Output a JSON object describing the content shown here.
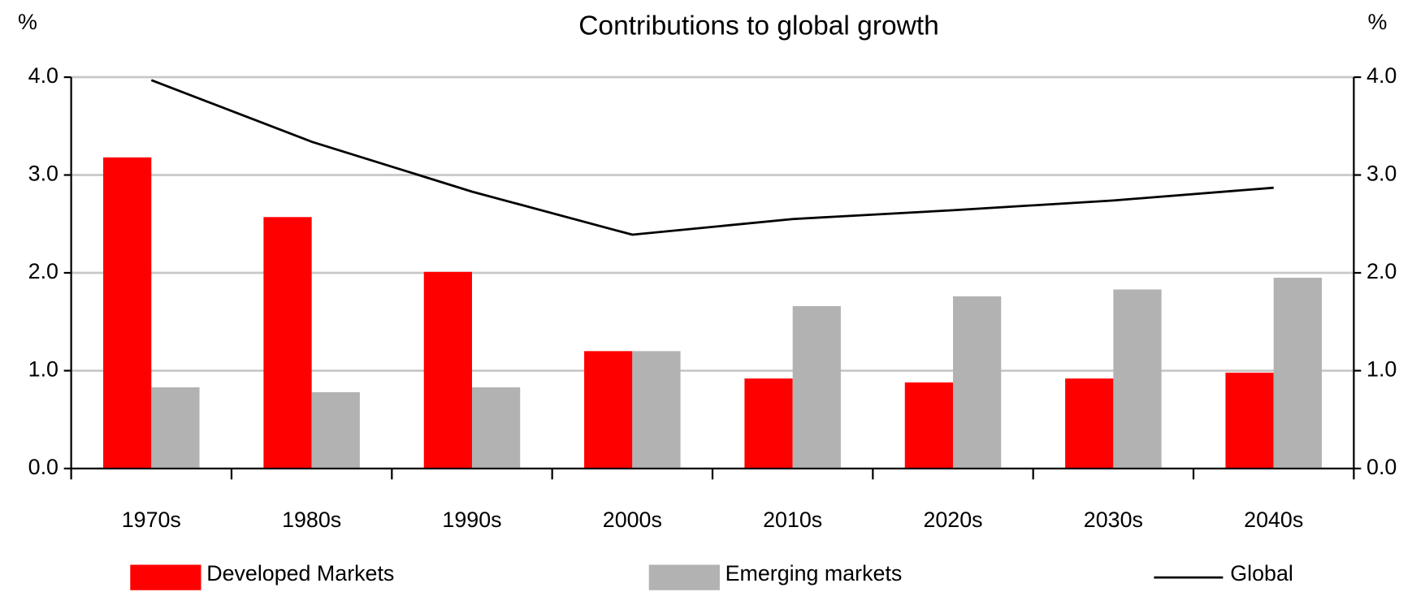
{
  "chart_data": {
    "type": "bar",
    "title": "Contributions to global growth",
    "y_label": "%",
    "y2_label": "%",
    "categories": [
      "1970s",
      "1980s",
      "1990s",
      "2000s",
      "2010s",
      "2020s",
      "2030s",
      "2040s"
    ],
    "series": [
      {
        "name": "Developed Markets",
        "color": "#ff0000",
        "values": [
          3.18,
          2.57,
          2.01,
          1.2,
          0.92,
          0.88,
          0.92,
          0.98
        ]
      },
      {
        "name": "Emerging markets",
        "color": "#b2b2b2",
        "values": [
          0.83,
          0.78,
          0.83,
          1.2,
          1.66,
          1.76,
          1.83,
          1.95
        ]
      },
      {
        "name": "Global",
        "type": "line",
        "axis": "y2",
        "color": "#000000",
        "values": [
          3.97,
          3.34,
          2.83,
          2.39,
          2.55,
          2.64,
          2.74,
          2.87
        ]
      }
    ],
    "ylim": [
      0,
      4
    ],
    "y2lim": [
      0,
      4
    ],
    "yticks": [
      {
        "value": 0,
        "label": "0.0"
      },
      {
        "value": 1,
        "label": "1.0"
      },
      {
        "value": 2,
        "label": "2.0"
      },
      {
        "value": 3,
        "label": "3.0"
      },
      {
        "value": 4,
        "label": "4.0"
      }
    ],
    "y2ticks": [
      {
        "value": 0,
        "label": "0.0"
      },
      {
        "value": 1,
        "label": "1.0"
      },
      {
        "value": 2,
        "label": "2.0"
      },
      {
        "value": 3,
        "label": "3.0"
      },
      {
        "value": 4,
        "label": "4.0"
      }
    ],
    "grid": true,
    "legend": "bottom"
  }
}
